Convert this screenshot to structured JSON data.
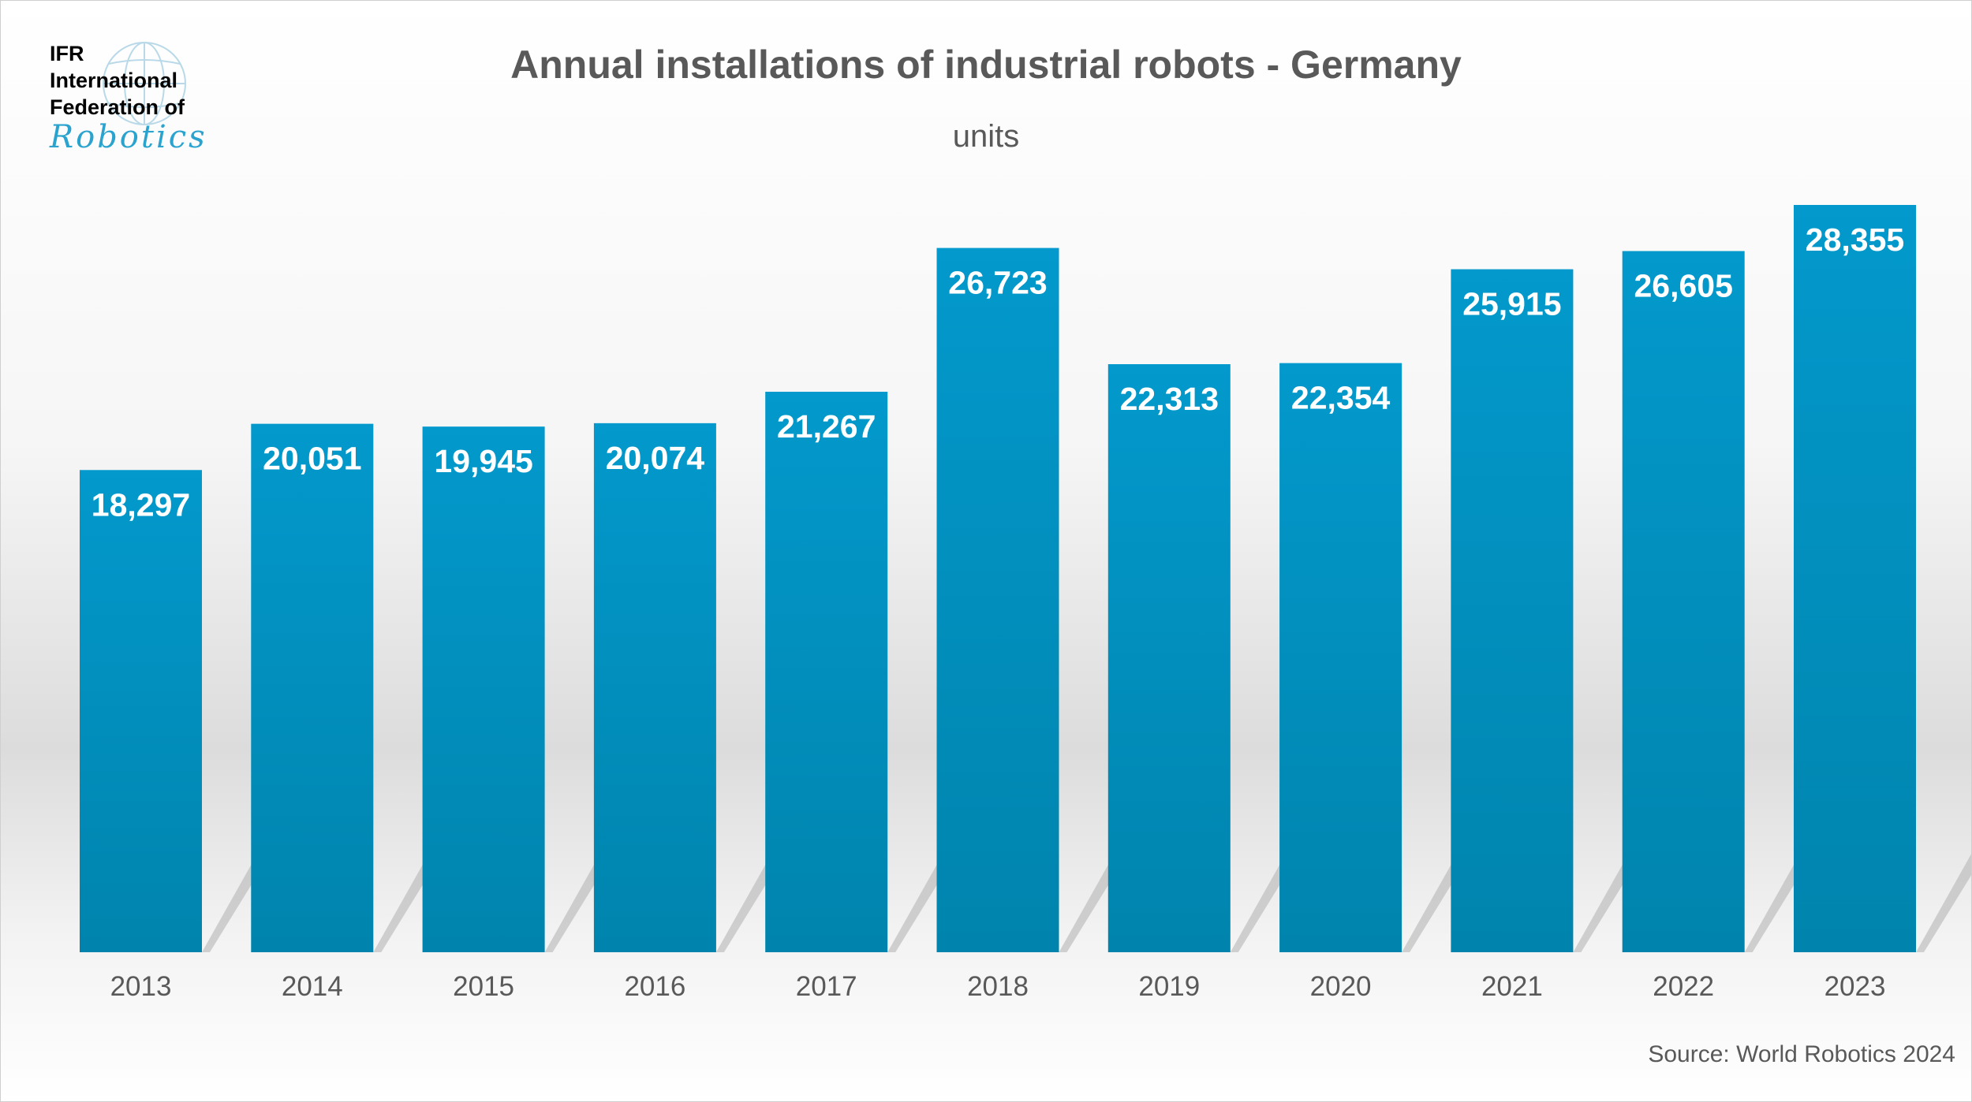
{
  "logo": {
    "line1": "IFR",
    "line2": "International",
    "line3": "Federation of",
    "script": "Robotics"
  },
  "chart_data": {
    "type": "bar",
    "title": "Annual installations of industrial robots - Germany",
    "subtitle": "units",
    "categories": [
      "2013",
      "2014",
      "2015",
      "2016",
      "2017",
      "2018",
      "2019",
      "2020",
      "2021",
      "2022",
      "2023"
    ],
    "values": [
      18297,
      20051,
      19945,
      20074,
      21267,
      26723,
      22313,
      22354,
      25915,
      26605,
      28355
    ],
    "data_labels": [
      "18,297",
      "20,051",
      "19,945",
      "20,074",
      "21,267",
      "26,723",
      "22,313",
      "22,354",
      "25,915",
      "26,605",
      "28,355"
    ],
    "ylim": [
      0,
      30000
    ],
    "grid": false,
    "legend": "none",
    "bar_color": "#0399cc",
    "bar_color_bottom": "#0084ad",
    "source": "Source: World Robotics 2024"
  }
}
